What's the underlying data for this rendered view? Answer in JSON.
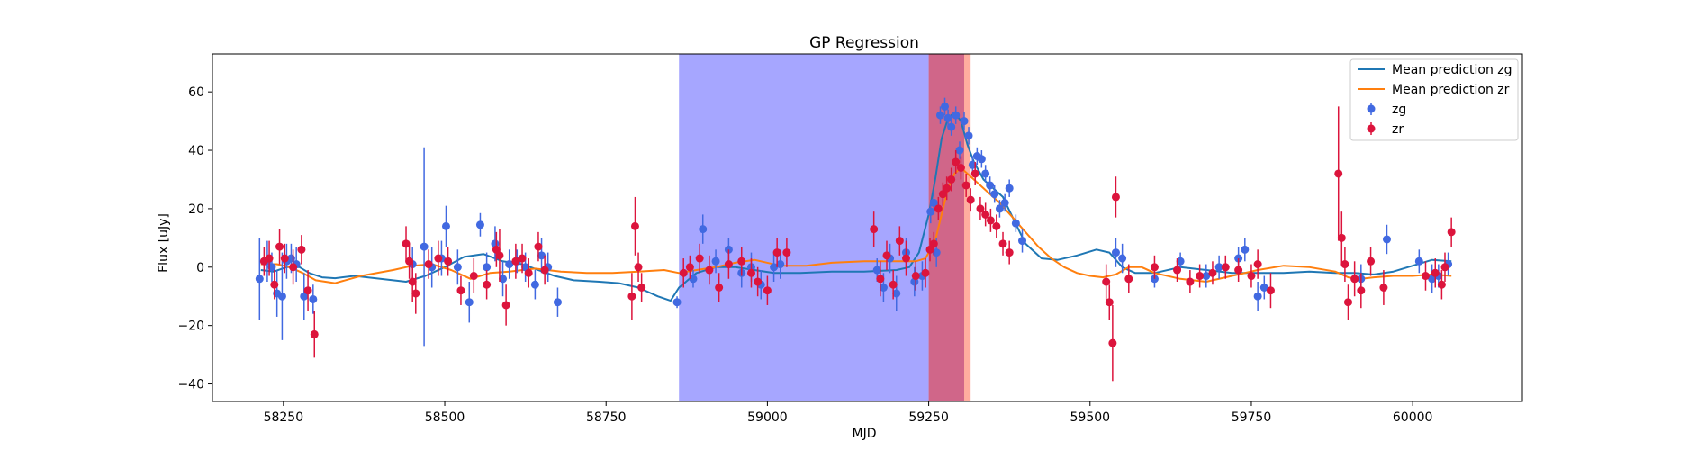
{
  "chart_data": {
    "type": "scatter",
    "title": "GP Regression",
    "xlabel": "MJD",
    "ylabel": "Flux [uJy]",
    "xlim": [
      58140,
      60170
    ],
    "ylim": [
      -46,
      73
    ],
    "xticks": [
      58250,
      58500,
      58750,
      59000,
      59250,
      59500,
      59750,
      60000
    ],
    "yticks": [
      -40,
      -20,
      0,
      20,
      40,
      60
    ],
    "grid": false,
    "legend_position": "top-right",
    "spans": [
      {
        "x0": 58863,
        "x1": 59250,
        "color": "#0000ff",
        "opacity": 0.35
      },
      {
        "x0": 59250,
        "x1": 59305,
        "color": "#b0003a",
        "opacity": 0.6
      },
      {
        "x0": 59305,
        "x1": 59315,
        "color": "#ff6a50",
        "opacity": 0.55
      }
    ],
    "series": [
      {
        "name": "Mean prediction zg",
        "kind": "line",
        "color": "#1f77b4",
        "x": [
          58215,
          58235,
          58255,
          58275,
          58290,
          58310,
          58330,
          58360,
          58400,
          58440,
          58470,
          58500,
          58530,
          58560,
          58590,
          58620,
          58645,
          58670,
          58700,
          58740,
          58770,
          58800,
          58830,
          58850,
          58863,
          58890,
          58920,
          58950,
          58980,
          59010,
          59050,
          59100,
          59150,
          59200,
          59220,
          59235,
          59250,
          59260,
          59270,
          59280,
          59290,
          59300,
          59310,
          59320,
          59335,
          59350,
          59365,
          59380,
          59400,
          59425,
          59450,
          59480,
          59510,
          59530,
          59550,
          59570,
          59600,
          59640,
          59680,
          59720,
          59760,
          59800,
          59840,
          59880,
          59910,
          59940,
          59970,
          60000,
          60030,
          60060
        ],
        "y": [
          -1,
          -1.5,
          0,
          0,
          -2,
          -3.5,
          -3.8,
          -3,
          -4,
          -5,
          -3,
          0,
          3.5,
          4.5,
          2,
          1,
          -1,
          -3,
          -4.5,
          -5,
          -5.5,
          -7,
          -10,
          -11.5,
          -7,
          -2,
          0,
          0,
          -1,
          -2,
          -2,
          -1.5,
          -1.5,
          -1,
          0,
          5,
          18,
          30,
          44,
          51,
          53,
          50,
          42,
          36,
          30,
          27,
          24,
          17,
          8,
          3,
          2.5,
          4,
          6,
          5,
          0,
          -2,
          -2,
          0,
          -1,
          -2,
          -2,
          -2,
          -1.5,
          -2,
          -2,
          -2.5,
          -1.5,
          0.5,
          2.5,
          2
        ]
      },
      {
        "name": "Mean prediction zr",
        "kind": "line",
        "color": "#ff7f0e",
        "x": [
          58215,
          58240,
          58260,
          58280,
          58300,
          58330,
          58370,
          58420,
          58450,
          58480,
          58510,
          58540,
          58570,
          58600,
          58640,
          58680,
          58720,
          58760,
          58800,
          58840,
          58863,
          58890,
          58920,
          58950,
          58980,
          59020,
          59060,
          59100,
          59150,
          59200,
          59230,
          59245,
          59260,
          59270,
          59280,
          59290,
          59300,
          59310,
          59320,
          59340,
          59360,
          59380,
          59400,
          59420,
          59440,
          59460,
          59480,
          59500,
          59520,
          59540,
          59560,
          59580,
          59600,
          59640,
          59680,
          59720,
          59760,
          59800,
          59840,
          59880,
          59900,
          59920,
          59940,
          59970,
          60000,
          60030,
          60060
        ],
        "y": [
          1,
          1,
          0,
          -2,
          -4.5,
          -5.5,
          -3,
          -1,
          0.5,
          1,
          -1,
          -4,
          -2,
          -1.5,
          -0.5,
          -1.5,
          -2,
          -2,
          -1.5,
          -1,
          -2,
          -1,
          0,
          1.5,
          2.5,
          0.5,
          0.5,
          1.5,
          2,
          2,
          2,
          3,
          9,
          18,
          27,
          32,
          34,
          32,
          30,
          26,
          22,
          17,
          12,
          7,
          3,
          0,
          -2,
          -3,
          -3.5,
          -2.5,
          0,
          0,
          -2,
          -4,
          -5,
          -3,
          -1,
          0.5,
          0,
          -1.5,
          -3.5,
          -4,
          -3.5,
          -3,
          -3,
          -2.5,
          -3
        ]
      },
      {
        "name": "zg",
        "kind": "errorbar",
        "color": "#4169e1",
        "x": [
          58213,
          58225,
          58232,
          58240,
          58248,
          58255,
          58262,
          58270,
          58282,
          58296,
          58450,
          58468,
          58480,
          58495,
          58502,
          58520,
          58538,
          58555,
          58565,
          58578,
          58590,
          58600,
          58612,
          58625,
          58640,
          58650,
          58660,
          58675,
          58860,
          58885,
          58900,
          58920,
          58940,
          58960,
          58975,
          58990,
          59010,
          59020,
          59170,
          59180,
          59190,
          59200,
          59215,
          59228,
          59240,
          59253,
          59258,
          59262,
          59268,
          59275,
          59280,
          59285,
          59292,
          59298,
          59305,
          59312,
          59318,
          59325,
          59332,
          59338,
          59345,
          59352,
          59360,
          59368,
          59375,
          59385,
          59395,
          59540,
          59550,
          59600,
          59640,
          59680,
          59700,
          59730,
          59740,
          59760,
          59770,
          59920,
          59960,
          60010,
          60030,
          60040,
          60055
        ],
        "y": [
          -4,
          2,
          0,
          -9,
          -10,
          2,
          3,
          1,
          -10,
          -11,
          1,
          7,
          0,
          3,
          14,
          0,
          -12,
          14.5,
          0,
          8,
          -4,
          1,
          2,
          0,
          -6,
          4,
          0,
          -12,
          -12,
          -4,
          13,
          2,
          6,
          -2,
          0,
          -6,
          0,
          1,
          -1,
          -7,
          3,
          -9,
          5,
          -5,
          -3,
          19,
          22,
          5,
          52,
          55,
          51,
          48,
          52,
          40,
          50,
          45,
          35,
          38,
          37,
          32,
          28,
          25,
          20,
          22,
          27,
          15,
          9,
          5,
          3,
          -4,
          2,
          -3,
          0,
          3,
          6,
          -10,
          -7,
          -4,
          9.5,
          2,
          -4,
          -3,
          1
        ],
        "err": [
          14,
          7,
          5,
          8,
          15,
          6,
          5,
          6,
          8,
          5,
          6,
          34,
          7,
          6,
          7,
          6,
          7,
          4,
          5,
          6,
          6,
          5,
          4,
          5,
          5,
          6,
          5,
          5,
          2,
          3,
          5,
          4,
          4,
          5,
          5,
          5,
          5,
          5,
          4,
          5,
          5,
          6,
          5,
          5,
          5,
          4,
          4,
          5,
          3,
          3,
          3,
          3,
          3,
          3,
          3,
          3,
          3,
          3,
          3,
          3,
          3,
          3,
          3,
          3,
          3,
          3,
          4,
          5,
          5,
          3,
          3,
          4,
          4,
          4,
          4,
          5,
          4,
          5,
          5,
          4,
          5,
          4,
          4
        ]
      },
      {
        "name": "zr",
        "kind": "errorbar",
        "color": "#dc143c",
        "x": [
          58220,
          58228,
          58236,
          58244,
          58252,
          58265,
          58278,
          58288,
          58298,
          58440,
          58445,
          58450,
          58455,
          58475,
          58490,
          58505,
          58525,
          58545,
          58565,
          58580,
          58585,
          58595,
          58610,
          58620,
          58630,
          58645,
          58655,
          58790,
          58795,
          58800,
          58805,
          58870,
          58880,
          58895,
          58910,
          58925,
          58940,
          58960,
          58975,
          58985,
          59000,
          59015,
          59030,
          59165,
          59175,
          59185,
          59195,
          59205,
          59215,
          59230,
          59245,
          59252,
          59258,
          59265,
          59272,
          59278,
          59285,
          59292,
          59300,
          59308,
          59315,
          59322,
          59330,
          59338,
          59346,
          59355,
          59365,
          59375,
          59525,
          59530,
          59535,
          59540,
          59560,
          59600,
          59635,
          59655,
          59670,
          59690,
          59710,
          59730,
          59750,
          59760,
          59780,
          59885,
          59890,
          59895,
          59900,
          59910,
          59920,
          59935,
          59955,
          60020,
          60035,
          60045,
          60050,
          60060
        ],
        "y": [
          2,
          3,
          -6,
          7,
          3,
          0,
          6,
          -8,
          -23,
          8,
          2,
          -5,
          -9,
          1,
          3,
          2,
          -8,
          -3,
          -6,
          6,
          4,
          -13,
          2,
          3,
          -2,
          7,
          -1,
          -10,
          14,
          0,
          -7,
          -2,
          0,
          3,
          -1,
          -7,
          1,
          2,
          -2,
          -5,
          -8,
          5,
          5,
          13,
          -4,
          4,
          -6,
          9,
          3,
          -3,
          -2,
          6,
          8,
          20,
          25,
          27,
          30,
          36,
          34,
          28,
          23,
          32,
          20,
          18,
          16,
          14,
          8,
          5,
          -5,
          -12,
          -26,
          24,
          -4,
          0,
          -1,
          -5,
          -3,
          -2,
          0,
          -1,
          -3,
          1,
          -8,
          32,
          10,
          1,
          -12,
          -4,
          -8,
          2,
          -7,
          -3,
          -2,
          -6,
          0,
          12
        ],
        "err": [
          5,
          6,
          5,
          6,
          5,
          6,
          5,
          7,
          8,
          6,
          6,
          7,
          7,
          5,
          6,
          5,
          5,
          6,
          5,
          6,
          9,
          7,
          6,
          5,
          5,
          5,
          5,
          8,
          10,
          5,
          5,
          5,
          4,
          5,
          5,
          5,
          5,
          5,
          5,
          5,
          5,
          5,
          5,
          6,
          6,
          5,
          5,
          5,
          6,
          5,
          5,
          4,
          4,
          4,
          4,
          4,
          4,
          4,
          4,
          4,
          4,
          4,
          4,
          4,
          4,
          4,
          4,
          4,
          6,
          6,
          13,
          7,
          5,
          4,
          4,
          4,
          4,
          4,
          4,
          4,
          4,
          5,
          6,
          23,
          9,
          6,
          6,
          6,
          6,
          5,
          6,
          5,
          5,
          5,
          5,
          5
        ]
      }
    ]
  }
}
